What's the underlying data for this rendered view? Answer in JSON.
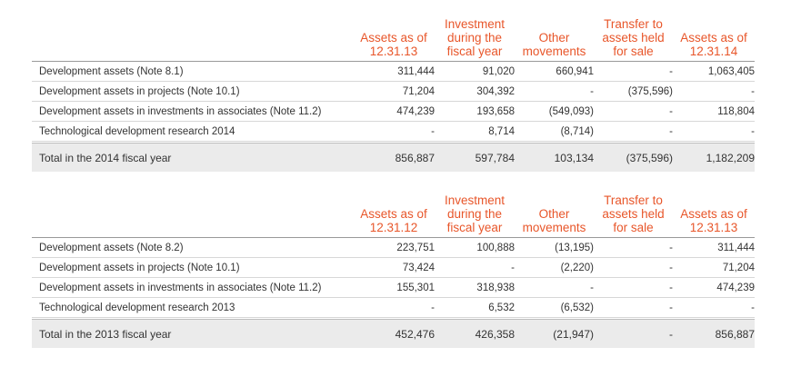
{
  "table_2014": {
    "headers": [
      "Assets as of\n12.31.13",
      "Investment\nduring the\nfiscal year",
      "Other\nmovements",
      "Transfer to\nassets held\nfor sale",
      "Assets as of\n12.31.14"
    ],
    "rows": [
      {
        "label": "Development assets (Note 8.1)",
        "values": [
          "311,444",
          "91,020",
          "660,941",
          "-",
          "1,063,405"
        ]
      },
      {
        "label": "Development assets in projects (Note 10.1)",
        "values": [
          "71,204",
          "304,392",
          "-",
          "(375,596)",
          "-"
        ]
      },
      {
        "label": "Development assets in investments in associates (Note 11.2)",
        "values": [
          "474,239",
          "193,658",
          "(549,093)",
          "-",
          "118,804"
        ]
      },
      {
        "label": "Technological development research 2014",
        "values": [
          "-",
          "8,714",
          "(8,714)",
          "-",
          "-"
        ]
      }
    ],
    "total": {
      "label": "Total in the 2014 fiscal year",
      "values": [
        "856,887",
        "597,784",
        "103,134",
        "(375,596)",
        "1,182,209"
      ]
    }
  },
  "table_2013": {
    "headers": [
      "Assets as of\n12.31.12",
      "Investment\nduring the\nfiscal year",
      "Other\nmovements",
      "Transfer to\nassets held\nfor sale",
      "Assets as of\n12.31.13"
    ],
    "rows": [
      {
        "label": "Development assets (Note 8.2)",
        "values": [
          "223,751",
          "100,888",
          "(13,195)",
          "-",
          "311,444"
        ]
      },
      {
        "label": "Development assets in projects (Note 10.1)",
        "values": [
          "73,424",
          "-",
          "(2,220)",
          "-",
          "71,204"
        ]
      },
      {
        "label": "Development assets in investments in associates (Note 11.2)",
        "values": [
          "155,301",
          "318,938",
          "-",
          "-",
          "474,239"
        ]
      },
      {
        "label": "Technological development research 2013",
        "values": [
          "-",
          "6,532",
          "(6,532)",
          "-",
          "-"
        ]
      }
    ],
    "total": {
      "label": "Total in the 2013 fiscal year",
      "values": [
        "452,476",
        "426,358",
        "(21,947)",
        "-",
        "856,887"
      ]
    }
  },
  "colors": {
    "header_text": "#e8562a",
    "total_bg": "#ebebeb"
  }
}
